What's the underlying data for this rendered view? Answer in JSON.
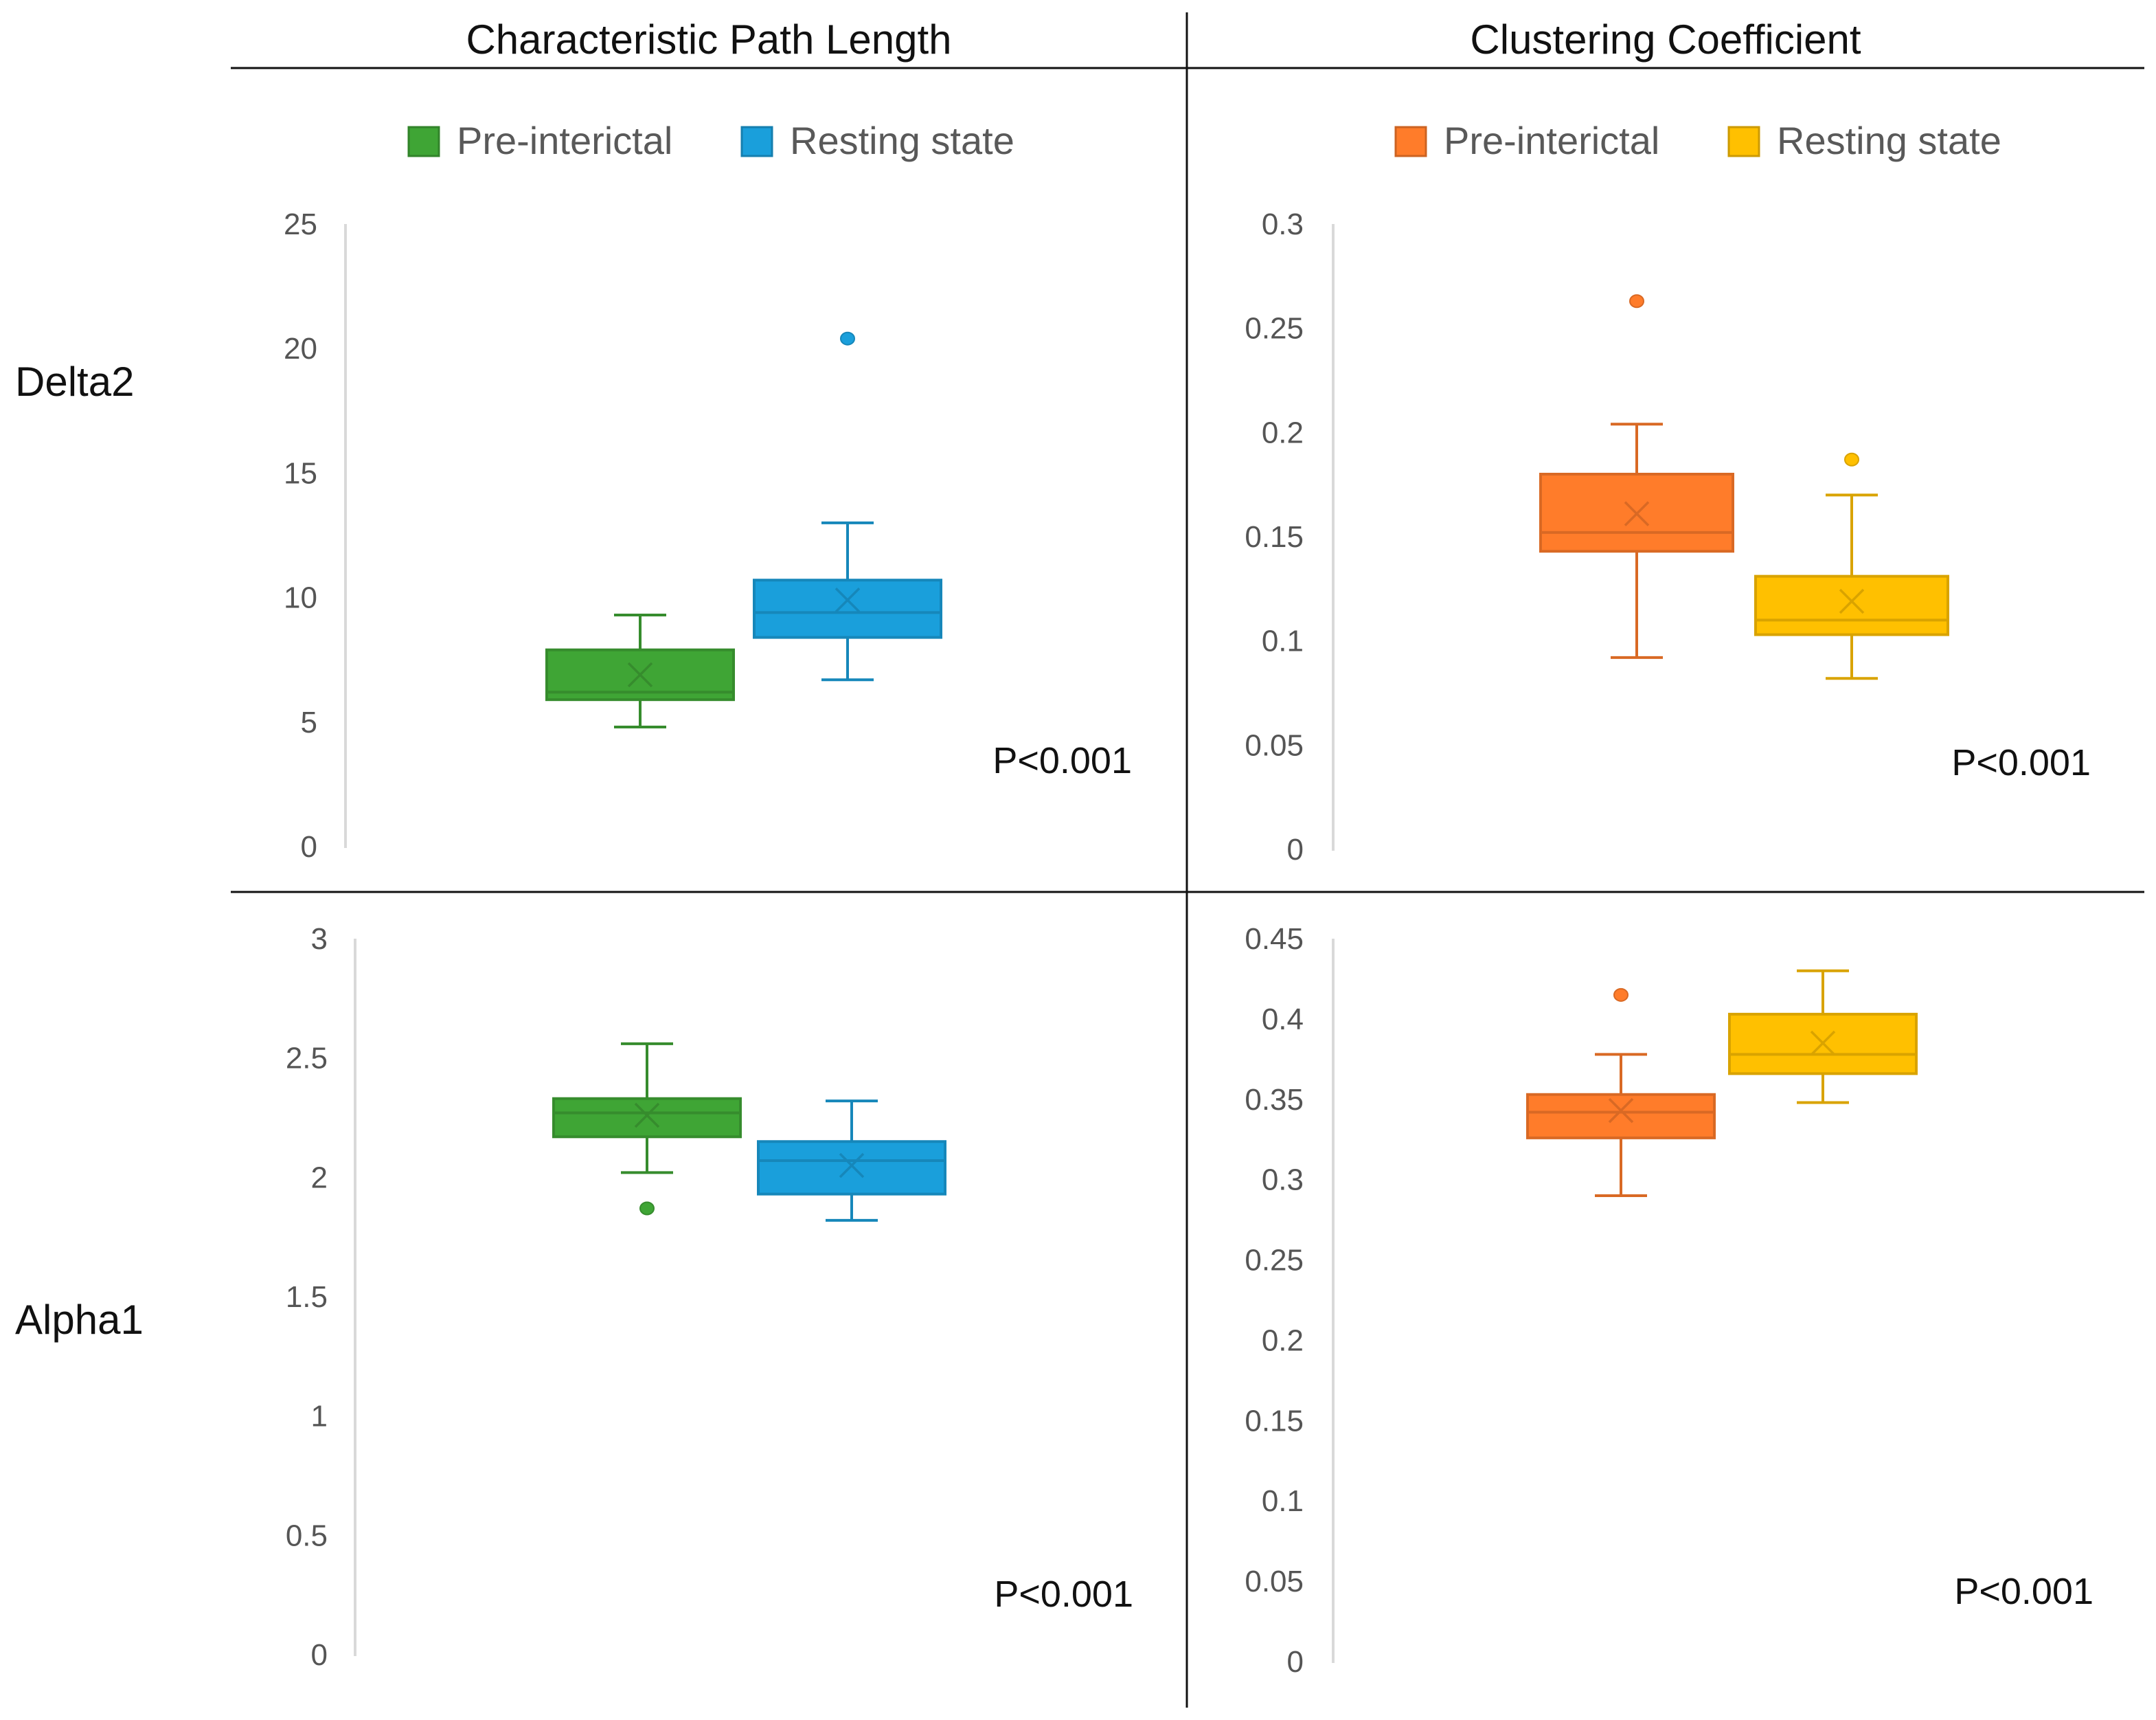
{
  "column_titles": [
    "Characteristic Path Length",
    "Clustering Coefficient"
  ],
  "row_labels": [
    "Delta2",
    "Alpha1"
  ],
  "chart_data": [
    {
      "type": "box",
      "row": "Delta2",
      "column": "Characteristic Path Length",
      "ylim": [
        0,
        25
      ],
      "yticks": [
        0,
        5,
        10,
        15,
        20,
        25
      ],
      "ytick_labels": [
        "0",
        "5",
        "10",
        "15",
        "20",
        "25"
      ],
      "legend": [
        {
          "name": "Pre-interictal",
          "color": "#3fa535"
        },
        {
          "name": "Resting state",
          "color": "#1a9fdb"
        }
      ],
      "series": [
        {
          "name": "Pre-interictal",
          "color": "#3fa535",
          "whisker_low": 4.8,
          "q1": 5.9,
          "median": 6.2,
          "q3": 7.9,
          "whisker_high": 9.3,
          "mean": 6.9,
          "outliers": []
        },
        {
          "name": "Resting state",
          "color": "#1a9fdb",
          "whisker_low": 6.7,
          "q1": 8.4,
          "median": 9.4,
          "q3": 10.7,
          "whisker_high": 13.0,
          "mean": 9.9,
          "outliers": [
            20.4
          ]
        }
      ],
      "annotation": "P<0.001"
    },
    {
      "type": "box",
      "row": "Delta2",
      "column": "Clustering Coefficient",
      "ylim": [
        0,
        0.3
      ],
      "yticks": [
        0,
        0.05,
        0.1,
        0.15,
        0.2,
        0.25,
        0.3
      ],
      "ytick_labels": [
        "0",
        "0.05",
        "0.1",
        "0.15",
        "0.2",
        "0.25",
        "0.3"
      ],
      "legend": [
        {
          "name": "Pre-interictal",
          "color": "#ff7c2a"
        },
        {
          "name": "Resting state",
          "color": "#ffc000"
        }
      ],
      "series": [
        {
          "name": "Pre-interictal",
          "color": "#ff7c2a",
          "whisker_low": 0.092,
          "q1": 0.143,
          "median": 0.152,
          "q3": 0.18,
          "whisker_high": 0.204,
          "mean": 0.161,
          "outliers": [
            0.263
          ]
        },
        {
          "name": "Resting state",
          "color": "#ffc000",
          "whisker_low": 0.082,
          "q1": 0.103,
          "median": 0.11,
          "q3": 0.131,
          "whisker_high": 0.17,
          "mean": 0.119,
          "outliers": [
            0.187
          ]
        }
      ],
      "annotation": "P<0.001"
    },
    {
      "type": "box",
      "row": "Alpha1",
      "column": "Characteristic Path Length",
      "ylim": [
        0,
        3
      ],
      "yticks": [
        0,
        0.5,
        1,
        1.5,
        2,
        2.5,
        3
      ],
      "ytick_labels": [
        "0",
        "0.5",
        "1",
        "1.5",
        "2",
        "2.5",
        "3"
      ],
      "legend": [],
      "series": [
        {
          "name": "Pre-interictal",
          "color": "#3fa535",
          "whisker_low": 2.02,
          "q1": 2.17,
          "median": 2.27,
          "q3": 2.33,
          "whisker_high": 2.56,
          "mean": 2.26,
          "outliers": [
            1.87
          ]
        },
        {
          "name": "Resting state",
          "color": "#1a9fdb",
          "whisker_low": 1.82,
          "q1": 1.93,
          "median": 2.07,
          "q3": 2.15,
          "whisker_high": 2.32,
          "mean": 2.05,
          "outliers": []
        }
      ],
      "annotation": "P<0.001"
    },
    {
      "type": "box",
      "row": "Alpha1",
      "column": "Clustering Coefficient",
      "ylim": [
        0,
        0.45
      ],
      "yticks": [
        0,
        0.05,
        0.1,
        0.15,
        0.2,
        0.25,
        0.3,
        0.35,
        0.4,
        0.45
      ],
      "ytick_labels": [
        "0",
        "0.05",
        "0.1",
        "0.15",
        "0.2",
        "0.25",
        "0.3",
        "0.35",
        "0.4",
        "0.45"
      ],
      "legend": [],
      "series": [
        {
          "name": "Pre-interictal",
          "color": "#ff7c2a",
          "whisker_low": 0.29,
          "q1": 0.326,
          "median": 0.342,
          "q3": 0.353,
          "whisker_high": 0.378,
          "mean": 0.343,
          "outliers": [
            0.415
          ]
        },
        {
          "name": "Resting state",
          "color": "#ffc000",
          "whisker_low": 0.348,
          "q1": 0.366,
          "median": 0.378,
          "q3": 0.403,
          "whisker_high": 0.43,
          "mean": 0.385,
          "outliers": []
        }
      ],
      "annotation": "P<0.001"
    }
  ]
}
